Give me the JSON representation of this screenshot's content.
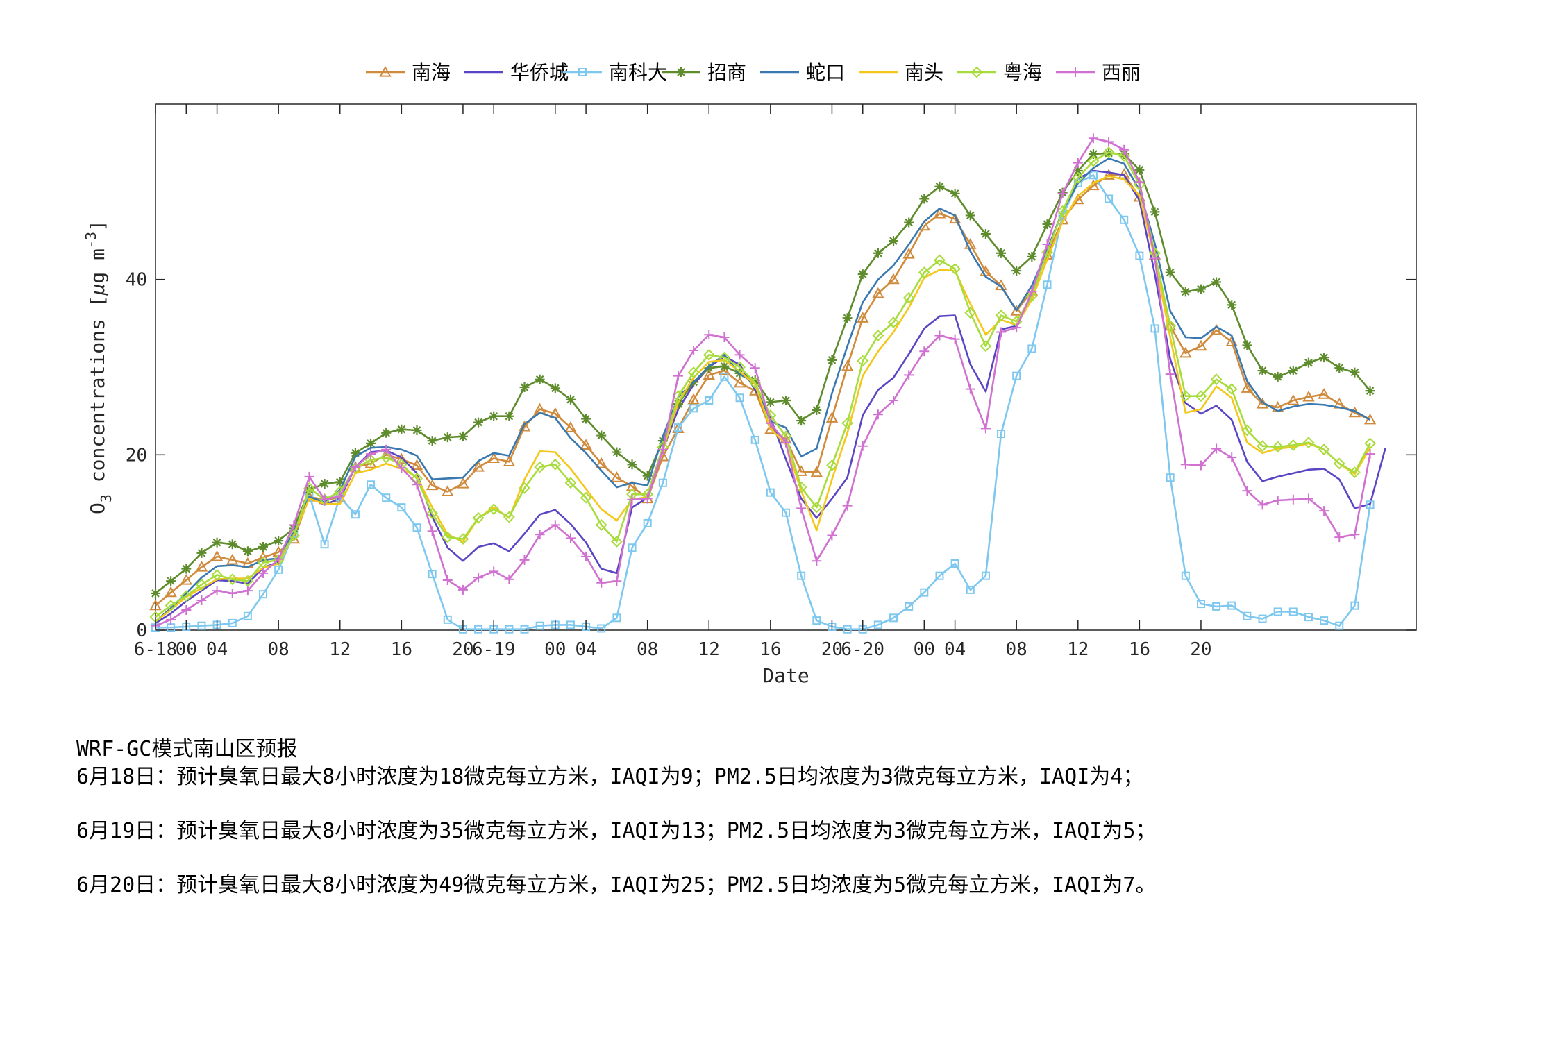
{
  "chart_data": {
    "type": "line",
    "xlabel": "Date",
    "ylabel": "O3 concentrations [μg m-3]",
    "ylim": [
      0,
      60
    ],
    "xlim": [
      0,
      82
    ],
    "yticks": [
      0,
      20,
      40
    ],
    "xticks": [
      {
        "x": 0,
        "label": "6-18"
      },
      {
        "x": 2,
        "label": "00"
      },
      {
        "x": 4,
        "label": "04"
      },
      {
        "x": 8,
        "label": "08"
      },
      {
        "x": 12,
        "label": "12"
      },
      {
        "x": 16,
        "label": "16"
      },
      {
        "x": 20,
        "label": "20"
      },
      {
        "x": 22,
        "label": "6-19"
      },
      {
        "x": 26,
        "label": "00"
      },
      {
        "x": 28,
        "label": "04"
      },
      {
        "x": 32,
        "label": "08"
      },
      {
        "x": 36,
        "label": "12"
      },
      {
        "x": 40,
        "label": "16"
      },
      {
        "x": 44,
        "label": "20"
      },
      {
        "x": 46,
        "label": "6-20"
      },
      {
        "x": 50,
        "label": "00"
      },
      {
        "x": 52,
        "label": "04"
      },
      {
        "x": 56,
        "label": "08"
      },
      {
        "x": 60,
        "label": "12"
      },
      {
        "x": 64,
        "label": "16"
      },
      {
        "x": 68,
        "label": "20"
      }
    ],
    "legend_position": "top",
    "grid": false,
    "series": [
      {
        "name": "南海",
        "color": "#D08A3C",
        "marker": "triangle",
        "values": [
          2.8,
          4.3,
          5.7,
          7.2,
          8.4,
          8.0,
          7.6,
          8.3,
          8.9,
          10.4,
          15.2,
          14.9,
          15.1,
          18.6,
          19.0,
          20.0,
          19.5,
          18.8,
          16.5,
          15.8,
          16.7,
          18.6,
          19.6,
          19.2,
          23.2,
          25.2,
          24.7,
          23.1,
          21.1,
          19.0,
          17.4,
          16.4,
          15.0,
          19.8,
          23.0,
          26.3,
          29.1,
          29.6,
          28.2,
          27.3,
          22.9,
          21.8,
          18.1,
          18.0,
          24.2,
          30.1,
          35.6,
          38.4,
          40.0,
          42.9,
          46.1,
          47.5,
          46.9,
          44.0,
          40.9,
          39.3,
          36.4,
          38.7,
          42.8,
          46.8,
          49.1,
          50.7,
          51.9,
          52.0,
          49.4,
          42.8,
          34.7,
          31.6,
          32.4,
          34.2,
          32.9,
          27.6,
          25.8,
          25.4,
          26.2,
          26.6,
          26.9,
          25.8,
          24.8,
          24.0
        ]
      },
      {
        "name": "华侨城",
        "color": "#5A46C4",
        "marker": "none",
        "values": [
          0.8,
          1.9,
          3.3,
          4.5,
          5.7,
          5.6,
          5.3,
          7.1,
          7.8,
          11.0,
          15.2,
          14.3,
          15.0,
          18.6,
          20.3,
          20.5,
          19.7,
          17.9,
          12.9,
          9.4,
          7.9,
          9.5,
          9.9,
          9.0,
          11.0,
          13.2,
          13.7,
          12.1,
          10.0,
          7.0,
          6.5,
          14.0,
          15.1,
          20.6,
          25.2,
          28.0,
          30.0,
          31.2,
          30.3,
          27.4,
          24.2,
          19.5,
          15.0,
          12.8,
          15.0,
          17.4,
          24.5,
          27.4,
          28.8,
          31.5,
          34.4,
          35.8,
          35.9,
          30.3,
          27.2,
          34.3,
          34.7,
          38.2,
          43.4,
          47.8,
          51.5,
          52.4,
          52.2,
          51.9,
          49.0,
          40.6,
          30.9,
          25.9,
          24.7,
          25.6,
          24.0,
          19.2,
          17.0,
          17.5,
          17.9,
          18.3,
          18.4,
          17.2,
          13.9,
          14.4,
          20.8
        ]
      },
      {
        "name": "南科大",
        "color": "#7EC8F0",
        "marker": "square",
        "values": [
          0.3,
          0.3,
          0.4,
          0.5,
          0.6,
          0.8,
          1.6,
          4.1,
          6.9,
          11.0,
          15.4,
          9.8,
          15.2,
          13.2,
          16.6,
          15.1,
          14.0,
          11.7,
          6.4,
          1.2,
          0.1,
          0.1,
          0.1,
          0.1,
          0.1,
          0.5,
          0.6,
          0.6,
          0.4,
          0.2,
          1.4,
          9.4,
          12.2,
          16.8,
          23.1,
          25.3,
          26.2,
          28.9,
          26.5,
          21.7,
          15.7,
          13.4,
          6.2,
          1.1,
          0.4,
          0.1,
          0.1,
          0.6,
          1.4,
          2.7,
          4.3,
          6.2,
          7.6,
          4.6,
          6.2,
          22.4,
          29.0,
          32.1,
          39.4,
          47.3,
          51.0,
          51.9,
          49.2,
          46.8,
          42.7,
          34.4,
          17.4,
          6.2,
          3.0,
          2.7,
          2.8,
          1.6,
          1.3,
          2.1,
          2.1,
          1.5,
          1.1,
          0.5,
          2.8,
          14.3
        ]
      },
      {
        "name": "招商",
        "color": "#5E8C2C",
        "marker": "star",
        "values": [
          4.2,
          5.6,
          7.0,
          8.8,
          10.0,
          9.8,
          9.0,
          9.5,
          10.2,
          11.6,
          16.0,
          16.7,
          16.9,
          20.2,
          21.3,
          22.5,
          22.9,
          22.8,
          21.6,
          22.0,
          22.1,
          23.7,
          24.4,
          24.4,
          27.7,
          28.6,
          27.6,
          26.3,
          24.1,
          22.2,
          20.3,
          18.9,
          17.6,
          21.6,
          25.8,
          28.3,
          29.9,
          30.1,
          29.3,
          28.5,
          26.0,
          26.2,
          23.9,
          25.1,
          30.8,
          35.6,
          40.6,
          43.0,
          44.4,
          46.5,
          49.2,
          50.6,
          49.8,
          47.3,
          45.2,
          43.0,
          41.0,
          42.6,
          46.3,
          49.9,
          52.4,
          54.3,
          54.4,
          54.3,
          52.5,
          47.7,
          40.8,
          38.6,
          38.9,
          39.7,
          37.1,
          32.5,
          29.6,
          28.9,
          29.6,
          30.5,
          31.1,
          29.9,
          29.4,
          27.3
        ]
      },
      {
        "name": "蛇口",
        "color": "#3A78B0",
        "marker": "none",
        "values": [
          1.0,
          2.5,
          4.2,
          6.0,
          7.3,
          7.4,
          7.2,
          8.0,
          8.2,
          11.2,
          15.2,
          14.6,
          16.0,
          19.8,
          20.8,
          20.9,
          20.6,
          19.9,
          17.2,
          17.3,
          17.4,
          19.3,
          20.2,
          19.9,
          23.5,
          24.8,
          24.2,
          21.9,
          20.2,
          18.2,
          16.3,
          16.8,
          16.5,
          22.1,
          26.6,
          28.3,
          30.1,
          31.4,
          29.2,
          28.2,
          23.8,
          23.1,
          19.8,
          20.7,
          27.0,
          32.4,
          37.4,
          40.0,
          41.6,
          44.0,
          46.6,
          48.1,
          47.3,
          43.2,
          40.3,
          39.2,
          36.5,
          39.3,
          43.3,
          47.8,
          51.0,
          52.7,
          53.8,
          53.2,
          50.2,
          44.1,
          36.4,
          33.4,
          33.3,
          34.6,
          33.6,
          28.4,
          26.0,
          25.0,
          25.5,
          25.8,
          25.7,
          25.4,
          25.0,
          24.0
        ]
      },
      {
        "name": "南头",
        "color": "#F5C71A",
        "marker": "none",
        "values": [
          1.0,
          2.3,
          3.8,
          4.8,
          5.8,
          5.9,
          5.9,
          7.1,
          7.6,
          10.9,
          15.0,
          14.4,
          14.4,
          17.9,
          18.3,
          19.0,
          18.4,
          17.5,
          14.0,
          10.9,
          10.1,
          12.8,
          14.0,
          12.8,
          17.2,
          20.4,
          20.3,
          18.4,
          16.1,
          13.8,
          12.5,
          14.9,
          15.2,
          20.6,
          26.0,
          28.8,
          30.6,
          30.8,
          29.5,
          28.0,
          23.0,
          21.2,
          15.9,
          11.4,
          17.2,
          22.5,
          29.0,
          31.8,
          34.0,
          36.8,
          40.2,
          41.1,
          41.0,
          37.2,
          33.7,
          35.4,
          34.8,
          37.7,
          42.3,
          46.6,
          49.5,
          51.0,
          51.8,
          51.4,
          49.6,
          42.4,
          33.4,
          24.8,
          25.2,
          27.8,
          26.5,
          21.4,
          20.2,
          20.7,
          20.9,
          21.3,
          20.6,
          19.0,
          17.8,
          20.8
        ]
      },
      {
        "name": "粤海",
        "color": "#A8DC3C",
        "marker": "diamond",
        "values": [
          1.5,
          2.8,
          3.9,
          5.2,
          6.3,
          5.8,
          5.6,
          7.7,
          8.0,
          10.8,
          16.2,
          14.9,
          15.8,
          18.5,
          19.4,
          19.7,
          18.9,
          17.3,
          13.3,
          10.6,
          10.4,
          12.8,
          13.8,
          12.9,
          16.2,
          18.6,
          18.9,
          16.8,
          15.1,
          12.0,
          10.1,
          15.5,
          15.5,
          20.9,
          26.7,
          29.4,
          31.4,
          31.1,
          30.0,
          28.2,
          24.5,
          22.1,
          16.3,
          14.0,
          18.8,
          23.6,
          30.7,
          33.6,
          35.1,
          37.9,
          40.8,
          42.2,
          41.2,
          36.2,
          32.4,
          35.9,
          35.2,
          38.1,
          43.1,
          47.8,
          51.6,
          53.5,
          54.5,
          54.1,
          50.8,
          43.0,
          34.7,
          26.7,
          26.7,
          28.6,
          27.5,
          22.8,
          21.0,
          20.9,
          21.1,
          21.4,
          20.6,
          19.0,
          18.0,
          21.3
        ]
      },
      {
        "name": "西丽",
        "color": "#D070D0",
        "marker": "plus",
        "values": [
          0.5,
          1.2,
          2.3,
          3.4,
          4.5,
          4.2,
          4.5,
          6.5,
          8.1,
          12.0,
          17.5,
          14.9,
          15.3,
          18.6,
          20.1,
          20.6,
          18.5,
          16.6,
          11.3,
          5.7,
          4.6,
          6.0,
          6.7,
          5.8,
          8.0,
          10.9,
          12.0,
          10.5,
          8.4,
          5.4,
          5.6,
          14.9,
          15.0,
          20.6,
          29.0,
          31.9,
          33.7,
          33.4,
          31.4,
          29.9,
          23.6,
          21.4,
          13.9,
          7.9,
          10.8,
          14.2,
          21.0,
          24.6,
          26.2,
          29.1,
          31.8,
          33.6,
          33.2,
          27.5,
          23.0,
          34.0,
          34.5,
          38.6,
          44.0,
          49.8,
          53.3,
          56.1,
          55.7,
          54.8,
          51.1,
          42.4,
          29.2,
          18.9,
          18.8,
          20.7,
          19.7,
          15.9,
          14.3,
          14.8,
          14.9,
          15.0,
          13.6,
          10.6,
          10.9,
          20.1
        ]
      }
    ]
  },
  "forecast": {
    "title": "WRF-GC模式南山区预报",
    "lines": [
      "6月18日：预计臭氧日最大8小时浓度为18微克每立方米，IAQI为9；PM2.5日均浓度为3微克每立方米，IAQI为4；",
      "6月19日：预计臭氧日最大8小时浓度为35微克每立方米，IAQI为13；PM2.5日均浓度为3微克每立方米，IAQI为5；",
      "6月20日：预计臭氧日最大8小时浓度为49微克每立方米，IAQI为25；PM2.5日均浓度为5微克每立方米，IAQI为7。"
    ]
  }
}
